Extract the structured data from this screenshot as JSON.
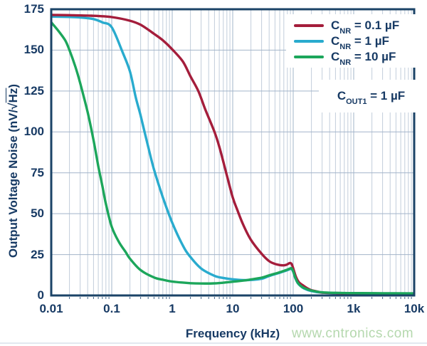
{
  "watermark": {
    "text": "www.cntronics.com",
    "color": "#B5D8AE"
  },
  "colors": {
    "background": "#FFFFFF",
    "text_navy": "#173A64",
    "frame": "#1B4367",
    "grid_major": "#A2B4CA",
    "grid_minor": "#C2CDDB",
    "axis_tick": "#44658A",
    "series_red": "#A41D3B",
    "series_cyan": "#29ABCE",
    "series_green": "#1CA65B"
  },
  "chart_data": {
    "type": "line",
    "title": "",
    "xlabel": "Frequency (kHz)",
    "ylabel": "Output Voltage Noise (nV/√Hz)",
    "ylabel_parts": {
      "pre": "Output Voltage Noise (nV/",
      "radical": "√",
      "radicand": "Hz",
      "post": ")"
    },
    "x_scale": "log",
    "x_range": [
      0.01,
      10000
    ],
    "y_range": [
      0,
      175
    ],
    "grid": true,
    "legend_position": "top-right",
    "y_ticks": [
      0,
      25,
      50,
      75,
      100,
      125,
      150,
      175
    ],
    "x_ticks": [
      {
        "value": 0.01,
        "label": "0.01"
      },
      {
        "value": 0.1,
        "label": "0.1"
      },
      {
        "value": 1,
        "label": "1"
      },
      {
        "value": 10,
        "label": "10"
      },
      {
        "value": 100,
        "label": "100"
      },
      {
        "value": 1000,
        "label": "1k"
      },
      {
        "value": 10000,
        "label": "10k"
      }
    ],
    "annotation": {
      "prefix": "C",
      "sub": "OUT1",
      "rest": " = 1 µF"
    },
    "series": [
      {
        "id": "cnr-0p1uf",
        "label_prefix": "C",
        "label_sub": "NR",
        "label_rest": " = 0.1 µF",
        "color": "#A41D3B",
        "points": [
          [
            0.01,
            171.5
          ],
          [
            0.02,
            171.4
          ],
          [
            0.05,
            171.0
          ],
          [
            0.1,
            170.2
          ],
          [
            0.2,
            168.0
          ],
          [
            0.3,
            165.5
          ],
          [
            0.5,
            160.0
          ],
          [
            0.7,
            156.0
          ],
          [
            1,
            150.5
          ],
          [
            1.5,
            143.0
          ],
          [
            2,
            134.0
          ],
          [
            2.7,
            125.0
          ],
          [
            3.5,
            114.0
          ],
          [
            5,
            100.0
          ],
          [
            6,
            91.0
          ],
          [
            7.8,
            75.0
          ],
          [
            10,
            60.0
          ],
          [
            12,
            52.0
          ],
          [
            15,
            43.0
          ],
          [
            20,
            34.0
          ],
          [
            30,
            25.5
          ],
          [
            40,
            21.0
          ],
          [
            50,
            19.3
          ],
          [
            60,
            18.6
          ],
          [
            70,
            18.4
          ],
          [
            78,
            18.8
          ],
          [
            88,
            19.8
          ],
          [
            95,
            19.0
          ],
          [
            103,
            15.0
          ],
          [
            112,
            11.0
          ],
          [
            125,
            8.0
          ],
          [
            150,
            5.8
          ],
          [
            175,
            4.2
          ],
          [
            200,
            3.2
          ],
          [
            250,
            2.4
          ],
          [
            300,
            1.8
          ],
          [
            500,
            1.5
          ],
          [
            1000,
            1.3
          ],
          [
            3000,
            1.15
          ],
          [
            10000,
            1.05
          ]
        ]
      },
      {
        "id": "cnr-1uf",
        "label_prefix": "C",
        "label_sub": "NR",
        "label_rest": " = 1 µF",
        "color": "#29ABCE",
        "points": [
          [
            0.01,
            170.5
          ],
          [
            0.02,
            170.3
          ],
          [
            0.03,
            170.0
          ],
          [
            0.05,
            169.0
          ],
          [
            0.07,
            167.0
          ],
          [
            0.1,
            164.0
          ],
          [
            0.15,
            149.0
          ],
          [
            0.2,
            137.0
          ],
          [
            0.25,
            121.0
          ],
          [
            0.3,
            110.0
          ],
          [
            0.4,
            91.0
          ],
          [
            0.5,
            77.0
          ],
          [
            0.7,
            60.0
          ],
          [
            1,
            44.5
          ],
          [
            1.5,
            30.5
          ],
          [
            2,
            23.5
          ],
          [
            3,
            16.5
          ],
          [
            5,
            12.0
          ],
          [
            7,
            10.7
          ],
          [
            10,
            9.9
          ],
          [
            15,
            9.4
          ],
          [
            20,
            9.5
          ],
          [
            30,
            10.2
          ],
          [
            40,
            11.9
          ],
          [
            50,
            13.0
          ],
          [
            60,
            13.9
          ],
          [
            70,
            14.7
          ],
          [
            80,
            15.5
          ],
          [
            88,
            16.1
          ],
          [
            94,
            16.3
          ],
          [
            100,
            14.5
          ],
          [
            108,
            10.7
          ],
          [
            118,
            7.7
          ],
          [
            130,
            6.0
          ],
          [
            150,
            4.3
          ],
          [
            200,
            2.7
          ],
          [
            300,
            1.7
          ],
          [
            500,
            1.4
          ],
          [
            1000,
            1.25
          ],
          [
            10000,
            1.0
          ]
        ]
      },
      {
        "id": "cnr-10uf",
        "label_prefix": "C",
        "label_sub": "NR",
        "label_rest": " = 10 µF",
        "color": "#1CA65B",
        "points": [
          [
            0.01,
            167.0
          ],
          [
            0.013,
            162.0
          ],
          [
            0.017,
            156.0
          ],
          [
            0.02,
            150.0
          ],
          [
            0.025,
            140.0
          ],
          [
            0.03,
            130.0
          ],
          [
            0.04,
            112.0
          ],
          [
            0.05,
            95.0
          ],
          [
            0.06,
            79.0
          ],
          [
            0.07,
            67.0
          ],
          [
            0.08,
            56.0
          ],
          [
            0.1,
            42.0
          ],
          [
            0.13,
            33.0
          ],
          [
            0.17,
            26.5
          ],
          [
            0.2,
            22.5
          ],
          [
            0.3,
            15.5
          ],
          [
            0.5,
            11.0
          ],
          [
            0.7,
            9.6
          ],
          [
            1,
            8.5
          ],
          [
            2,
            7.5
          ],
          [
            3,
            7.3
          ],
          [
            5,
            7.4
          ],
          [
            7,
            7.8
          ],
          [
            10,
            8.4
          ],
          [
            15,
            9.1
          ],
          [
            20,
            9.8
          ],
          [
            30,
            10.9
          ],
          [
            40,
            12.3
          ],
          [
            50,
            13.3
          ],
          [
            60,
            14.2
          ],
          [
            70,
            15.0
          ],
          [
            80,
            15.8
          ],
          [
            88,
            16.4
          ],
          [
            94,
            16.6
          ],
          [
            100,
            14.8
          ],
          [
            108,
            11.0
          ],
          [
            118,
            8.0
          ],
          [
            130,
            6.2
          ],
          [
            150,
            4.6
          ],
          [
            200,
            3.0
          ],
          [
            300,
            1.9
          ],
          [
            500,
            1.6
          ],
          [
            1000,
            1.45
          ],
          [
            3000,
            1.35
          ],
          [
            10000,
            1.25
          ]
        ]
      }
    ]
  }
}
